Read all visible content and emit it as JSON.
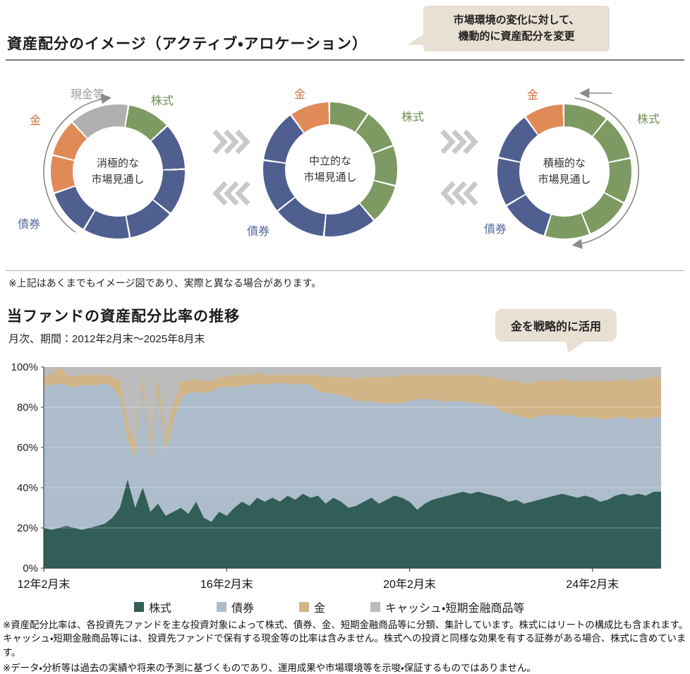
{
  "section1": {
    "title": "資産配分のイメージ（アクティブ・アロケーション）",
    "note": "※上記はあくまでもイメージ図であり、実際と異なる場合があります。"
  },
  "callouts": {
    "top": {
      "line1": "市場環境の変化に対して、",
      "line2": "機動的に資産配分を変更"
    },
    "gold": {
      "text": "金を戦略的に活用"
    }
  },
  "section2": {
    "title": "当ファンドの資産配分比率の推移",
    "subtitle": "月次、期間：2012年2月末～2025年8月末"
  },
  "icons": {
    "chevrons_right": "double-angle right arrows",
    "chevrons_left": "double-angle left arrows",
    "cycle_arrow": "curved rotation arrow"
  },
  "colors": {
    "stock_green": "#7d9a62",
    "bond_blue": "#4f5f90",
    "gold_orange": "#e08a58",
    "cash_gray": "#b0b0b0",
    "bubble_beige": "#e8e0d3"
  },
  "chart_data": [
    {
      "type": "pie",
      "variant": "donut",
      "title": "消極的な市場見通し",
      "center_lines": [
        "消極的な",
        "市場見通し"
      ],
      "rotation": 10,
      "segments": [
        {
          "label": "株式",
          "color": "#7d9a62",
          "sweep_deg": 38,
          "percent": 10.6,
          "parts": 1
        },
        {
          "label": "債券",
          "color": "#4f5f90",
          "sweep_deg": 204,
          "percent": 56.7,
          "parts": 5
        },
        {
          "label": "金",
          "color": "#e08a58",
          "sweep_deg": 66,
          "percent": 18.3,
          "parts": 2
        },
        {
          "label": "現金等",
          "color": "#b0b0b0",
          "sweep_deg": 52,
          "percent": 14.4,
          "parts": 1
        }
      ],
      "labels": [
        {
          "text": "現金等",
          "color": "#9a9a9a",
          "pos": "cash"
        },
        {
          "text": "株式",
          "color": "#6f8c4f",
          "pos": "stock"
        },
        {
          "text": "金",
          "color": "#d0703a",
          "pos": "gold"
        },
        {
          "text": "債券",
          "color": "#5a6b9e",
          "pos": "bond"
        }
      ]
    },
    {
      "type": "pie",
      "variant": "donut",
      "title": "中立的な市場見通し",
      "center_lines": [
        "中立的な",
        "市場見通し"
      ],
      "rotation": 0,
      "segments": [
        {
          "label": "株式",
          "color": "#7d9a62",
          "sweep_deg": 140,
          "percent": 38.9,
          "parts": 4
        },
        {
          "label": "債券",
          "color": "#4f5f90",
          "sweep_deg": 185,
          "percent": 51.4,
          "parts": 4
        },
        {
          "label": "金",
          "color": "#e08a58",
          "sweep_deg": 35,
          "percent": 9.7,
          "parts": 1
        }
      ],
      "labels": [
        {
          "text": "金",
          "color": "#d0703a",
          "pos": "gold"
        },
        {
          "text": "株式",
          "color": "#6f8c4f",
          "pos": "stock"
        },
        {
          "text": "債券",
          "color": "#5a6b9e",
          "pos": "bond"
        }
      ]
    },
    {
      "type": "pie",
      "variant": "donut",
      "title": "積極的な市場見通し",
      "center_lines": [
        "積極的な",
        "市場見通し"
      ],
      "rotation": 0,
      "segments": [
        {
          "label": "株式",
          "color": "#7d9a62",
          "sweep_deg": 198,
          "percent": 55.0,
          "parts": 5
        },
        {
          "label": "債券",
          "color": "#4f5f90",
          "sweep_deg": 127,
          "percent": 35.3,
          "parts": 3
        },
        {
          "label": "金",
          "color": "#e08a58",
          "sweep_deg": 35,
          "percent": 9.7,
          "parts": 1
        }
      ],
      "labels": [
        {
          "text": "金",
          "color": "#d0703a",
          "pos": "gold"
        },
        {
          "text": "株式",
          "color": "#6f8c4f",
          "pos": "stock"
        },
        {
          "text": "債券",
          "color": "#5a6b9e",
          "pos": "bond"
        }
      ]
    },
    {
      "type": "area",
      "stacked": true,
      "title": "当ファンドの資産配分比率の推移",
      "x_start": "2012-02",
      "x_end": "2025-08",
      "x_step_months": 2,
      "x_tick_labels": [
        "12年2月末",
        "16年2月末",
        "20年2月末",
        "24年2月末"
      ],
      "x_tick_positions": [
        0,
        24,
        48,
        72
      ],
      "ylim": [
        0,
        100
      ],
      "y_ticks": [
        "0%",
        "20%",
        "40%",
        "60%",
        "80%",
        "100%"
      ],
      "grid": "horizontal-faint",
      "legend_position": "bottom",
      "series": [
        {
          "name": "株式",
          "color": "#315e57",
          "values": [
            20,
            19,
            20,
            21,
            20,
            19,
            20,
            21,
            22,
            25,
            30,
            44,
            30,
            40,
            28,
            32,
            26,
            28,
            30,
            27,
            33,
            25,
            23,
            28,
            26,
            30,
            33,
            31,
            35,
            33,
            35,
            33,
            36,
            34,
            37,
            35,
            36,
            32,
            35,
            33,
            30,
            31,
            33,
            35,
            32,
            34,
            36,
            35,
            33,
            29,
            32,
            34,
            35,
            36,
            37,
            38,
            37,
            38,
            37,
            36,
            35,
            33,
            34,
            32,
            33,
            34,
            35,
            36,
            37,
            36,
            35,
            36,
            35,
            33,
            34,
            36,
            37,
            36,
            37,
            36,
            38,
            38
          ]
        },
        {
          "name": "債券",
          "color": "#aebdcb",
          "values": [
            71,
            72,
            72,
            70,
            70,
            72,
            71,
            70,
            70,
            65,
            55,
            20,
            25,
            50,
            27,
            55,
            32,
            45,
            55,
            60,
            55,
            62,
            65,
            62,
            64,
            60,
            58,
            60,
            57,
            58,
            57,
            59,
            56,
            57,
            55,
            56,
            52,
            55,
            52,
            53,
            55,
            52,
            50,
            48,
            50,
            48,
            46,
            47,
            50,
            55,
            52,
            50,
            48,
            47,
            46,
            45,
            45,
            44,
            44,
            45,
            43,
            44,
            42,
            43,
            41,
            42,
            41,
            40,
            39,
            40,
            40,
            39,
            40,
            41,
            40,
            39,
            38,
            38,
            38,
            38,
            37,
            37
          ]
        },
        {
          "name": "金",
          "color": "#d2b586",
          "values": [
            5,
            5,
            8,
            5,
            5,
            5,
            5,
            5,
            4,
            5,
            8,
            8,
            5,
            5,
            5,
            8,
            6,
            7,
            8,
            6,
            6,
            6,
            5,
            5,
            5,
            6,
            5,
            5,
            5,
            5,
            4,
            4,
            4,
            5,
            4,
            5,
            8,
            8,
            8,
            9,
            10,
            11,
            12,
            12,
            13,
            13,
            13,
            14,
            13,
            12,
            12,
            12,
            13,
            13,
            13,
            13,
            14,
            14,
            14,
            14,
            16,
            16,
            17,
            17,
            18,
            17,
            17,
            17,
            18,
            17,
            18,
            18,
            18,
            19,
            19,
            18,
            19,
            19,
            19,
            20,
            20,
            20
          ]
        },
        {
          "name": "キャッシュ・短期金融商品等",
          "color": "#bcbcbc",
          "values": [
            4,
            4,
            0,
            4,
            5,
            4,
            4,
            4,
            4,
            5,
            7,
            28,
            40,
            5,
            40,
            5,
            36,
            20,
            7,
            7,
            6,
            7,
            7,
            5,
            5,
            4,
            4,
            4,
            3,
            4,
            4,
            4,
            4,
            4,
            4,
            4,
            4,
            5,
            5,
            5,
            5,
            6,
            5,
            5,
            5,
            5,
            5,
            4,
            4,
            4,
            4,
            4,
            4,
            4,
            4,
            4,
            4,
            4,
            5,
            5,
            6,
            7,
            7,
            8,
            8,
            7,
            7,
            7,
            6,
            7,
            7,
            7,
            7,
            7,
            7,
            7,
            6,
            7,
            6,
            6,
            5,
            5
          ]
        }
      ]
    }
  ],
  "footnotes": [
    "※資産配分比率は、各投資先ファンドを主な投資対象によって株式、債券、金、短期金融商品等に分類、集計しています。株式にはリートの構成比も含まれます。キャッシュ・短期金融商品等には、投資先ファンドで保有する現金等の比率は含みません。株式への投資と同様な効果を有する証券がある場合、株式に含めています。",
    "※データ・分析等は過去の実績や将来の予測に基づくものであり、運用成果や市場環境等を示唆・保証するものではありません。"
  ]
}
